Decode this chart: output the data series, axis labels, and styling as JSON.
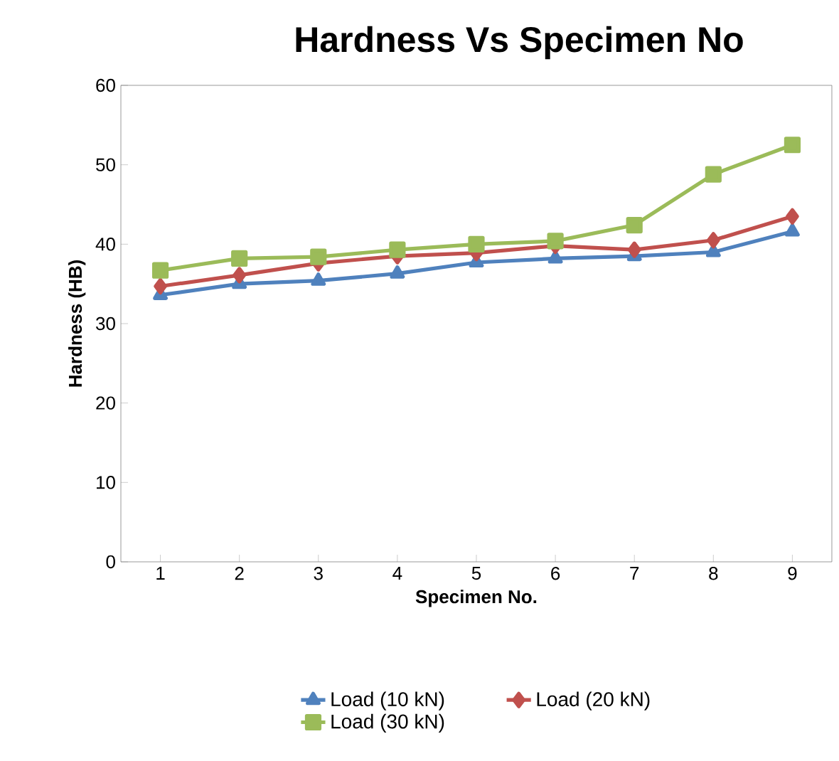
{
  "chart_data": {
    "type": "line",
    "title": "Hardness Vs Specimen No",
    "xlabel": "Specimen No.",
    "ylabel": "Hardness (HB)",
    "categories": [
      "1",
      "2",
      "3",
      "4",
      "5",
      "6",
      "7",
      "8",
      "9"
    ],
    "ylim": [
      0,
      60
    ],
    "yticks": [
      0,
      10,
      20,
      30,
      40,
      50,
      60
    ],
    "legend": "bottom",
    "line_style": "solid",
    "series": [
      {
        "name": "Load (10 kN)",
        "color": "#4f81bd",
        "marker": "triangle",
        "values": [
          33.6,
          35.0,
          35.4,
          36.3,
          37.7,
          38.2,
          38.5,
          39.0,
          41.6
        ]
      },
      {
        "name": "Load (20 kN)",
        "color": "#c0504d",
        "marker": "diamond",
        "values": [
          34.7,
          36.1,
          37.6,
          38.5,
          38.9,
          39.8,
          39.3,
          40.5,
          43.5
        ]
      },
      {
        "name": "Load (30 kN)",
        "color": "#9bbb59",
        "marker": "square",
        "values": [
          36.7,
          38.2,
          38.4,
          39.3,
          40.0,
          40.4,
          42.4,
          48.8,
          52.5
        ]
      }
    ]
  }
}
